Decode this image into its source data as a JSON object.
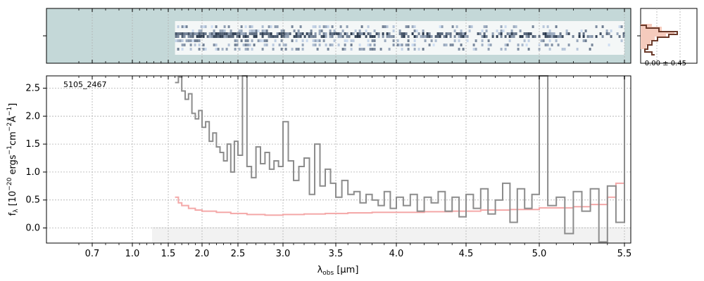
{
  "chart_data": {
    "type": "line",
    "object_id": "5105_2467",
    "xlabel": "λ_obs [μm]",
    "ylabel": "f_λ [10^-20 ergs^-1 cm^-2 Å^-1]",
    "x_ticks": [
      "0.7",
      "1.0",
      "1.5",
      "2.0",
      "2.5",
      "3.0",
      "3.5",
      "4.0",
      "4.5",
      "5.0",
      "5.5"
    ],
    "y_ticks": [
      "0.0",
      "0.5",
      "1.0",
      "1.5",
      "2.0",
      "2.5"
    ],
    "ylim": [
      -0.27,
      2.72
    ],
    "grid": true,
    "noise_label": "-0.00 ± 0.45",
    "colors": {
      "flux": "#8c8c8c",
      "model": "#f4a8a8",
      "grid": "#b0b0b0",
      "spec2d_bg": "#c4d8d8",
      "hist_line": "#6b3a2a",
      "hist_fill": "#f5cbbd"
    },
    "series": [
      {
        "role": "flux",
        "points": [
          [
            1.6,
            2.6
          ],
          [
            1.65,
            2.7
          ],
          [
            1.7,
            2.45
          ],
          [
            1.75,
            2.3
          ],
          [
            1.8,
            2.4
          ],
          [
            1.85,
            2.05
          ],
          [
            1.9,
            1.95
          ],
          [
            1.95,
            2.1
          ],
          [
            2.0,
            1.8
          ],
          [
            2.05,
            1.9
          ],
          [
            2.1,
            1.55
          ],
          [
            2.15,
            1.7
          ],
          [
            2.2,
            1.45
          ],
          [
            2.25,
            1.35
          ],
          [
            2.3,
            1.2
          ],
          [
            2.35,
            1.5
          ],
          [
            2.4,
            1.0
          ],
          [
            2.45,
            1.55
          ],
          [
            2.5,
            1.3
          ],
          [
            2.55,
            2.72
          ],
          [
            2.6,
            1.1
          ],
          [
            2.65,
            0.9
          ],
          [
            2.7,
            1.45
          ],
          [
            2.75,
            1.15
          ],
          [
            2.8,
            1.35
          ],
          [
            2.85,
            1.05
          ],
          [
            2.9,
            1.2
          ],
          [
            2.95,
            1.1
          ],
          [
            3.0,
            1.9
          ],
          [
            3.05,
            1.2
          ],
          [
            3.1,
            0.85
          ],
          [
            3.15,
            1.1
          ],
          [
            3.2,
            1.25
          ],
          [
            3.25,
            0.6
          ],
          [
            3.3,
            1.5
          ],
          [
            3.35,
            0.75
          ],
          [
            3.4,
            1.05
          ],
          [
            3.45,
            0.8
          ],
          [
            3.5,
            0.55
          ],
          [
            3.55,
            0.85
          ],
          [
            3.6,
            0.6
          ],
          [
            3.65,
            0.65
          ],
          [
            3.7,
            0.45
          ],
          [
            3.75,
            0.6
          ],
          [
            3.8,
            0.5
          ],
          [
            3.85,
            0.4
          ],
          [
            3.9,
            0.65
          ],
          [
            3.95,
            0.35
          ],
          [
            4.0,
            0.55
          ],
          [
            4.05,
            0.4
          ],
          [
            4.1,
            0.6
          ],
          [
            4.15,
            0.3
          ],
          [
            4.2,
            0.55
          ],
          [
            4.25,
            0.45
          ],
          [
            4.3,
            0.65
          ],
          [
            4.35,
            0.3
          ],
          [
            4.4,
            0.55
          ],
          [
            4.45,
            0.2
          ],
          [
            4.5,
            0.6
          ],
          [
            4.55,
            0.35
          ],
          [
            4.6,
            0.7
          ],
          [
            4.65,
            0.25
          ],
          [
            4.7,
            0.5
          ],
          [
            4.75,
            0.8
          ],
          [
            4.8,
            0.1
          ],
          [
            4.85,
            0.7
          ],
          [
            4.9,
            0.35
          ],
          [
            4.95,
            0.6
          ],
          [
            5.0,
            2.72
          ],
          [
            5.05,
            0.4
          ],
          [
            5.1,
            0.55
          ],
          [
            5.15,
            -0.1
          ],
          [
            5.2,
            0.65
          ],
          [
            5.25,
            0.3
          ],
          [
            5.3,
            0.7
          ],
          [
            5.35,
            -0.25
          ],
          [
            5.4,
            0.75
          ],
          [
            5.45,
            0.1
          ],
          [
            5.5,
            2.72
          ]
        ]
      },
      {
        "role": "model",
        "points": [
          [
            1.6,
            0.55
          ],
          [
            1.65,
            0.45
          ],
          [
            1.7,
            0.4
          ],
          [
            1.8,
            0.35
          ],
          [
            1.9,
            0.32
          ],
          [
            2.0,
            0.3
          ],
          [
            2.2,
            0.28
          ],
          [
            2.4,
            0.26
          ],
          [
            2.6,
            0.24
          ],
          [
            2.8,
            0.23
          ],
          [
            3.0,
            0.24
          ],
          [
            3.2,
            0.25
          ],
          [
            3.4,
            0.26
          ],
          [
            3.6,
            0.27
          ],
          [
            3.8,
            0.28
          ],
          [
            4.0,
            0.28
          ],
          [
            4.2,
            0.29
          ],
          [
            4.4,
            0.3
          ],
          [
            4.6,
            0.32
          ],
          [
            4.8,
            0.33
          ],
          [
            5.0,
            0.36
          ],
          [
            5.2,
            0.38
          ],
          [
            5.3,
            0.42
          ],
          [
            5.4,
            0.55
          ],
          [
            5.45,
            0.8
          ],
          [
            5.5,
            2.6
          ]
        ]
      }
    ]
  }
}
